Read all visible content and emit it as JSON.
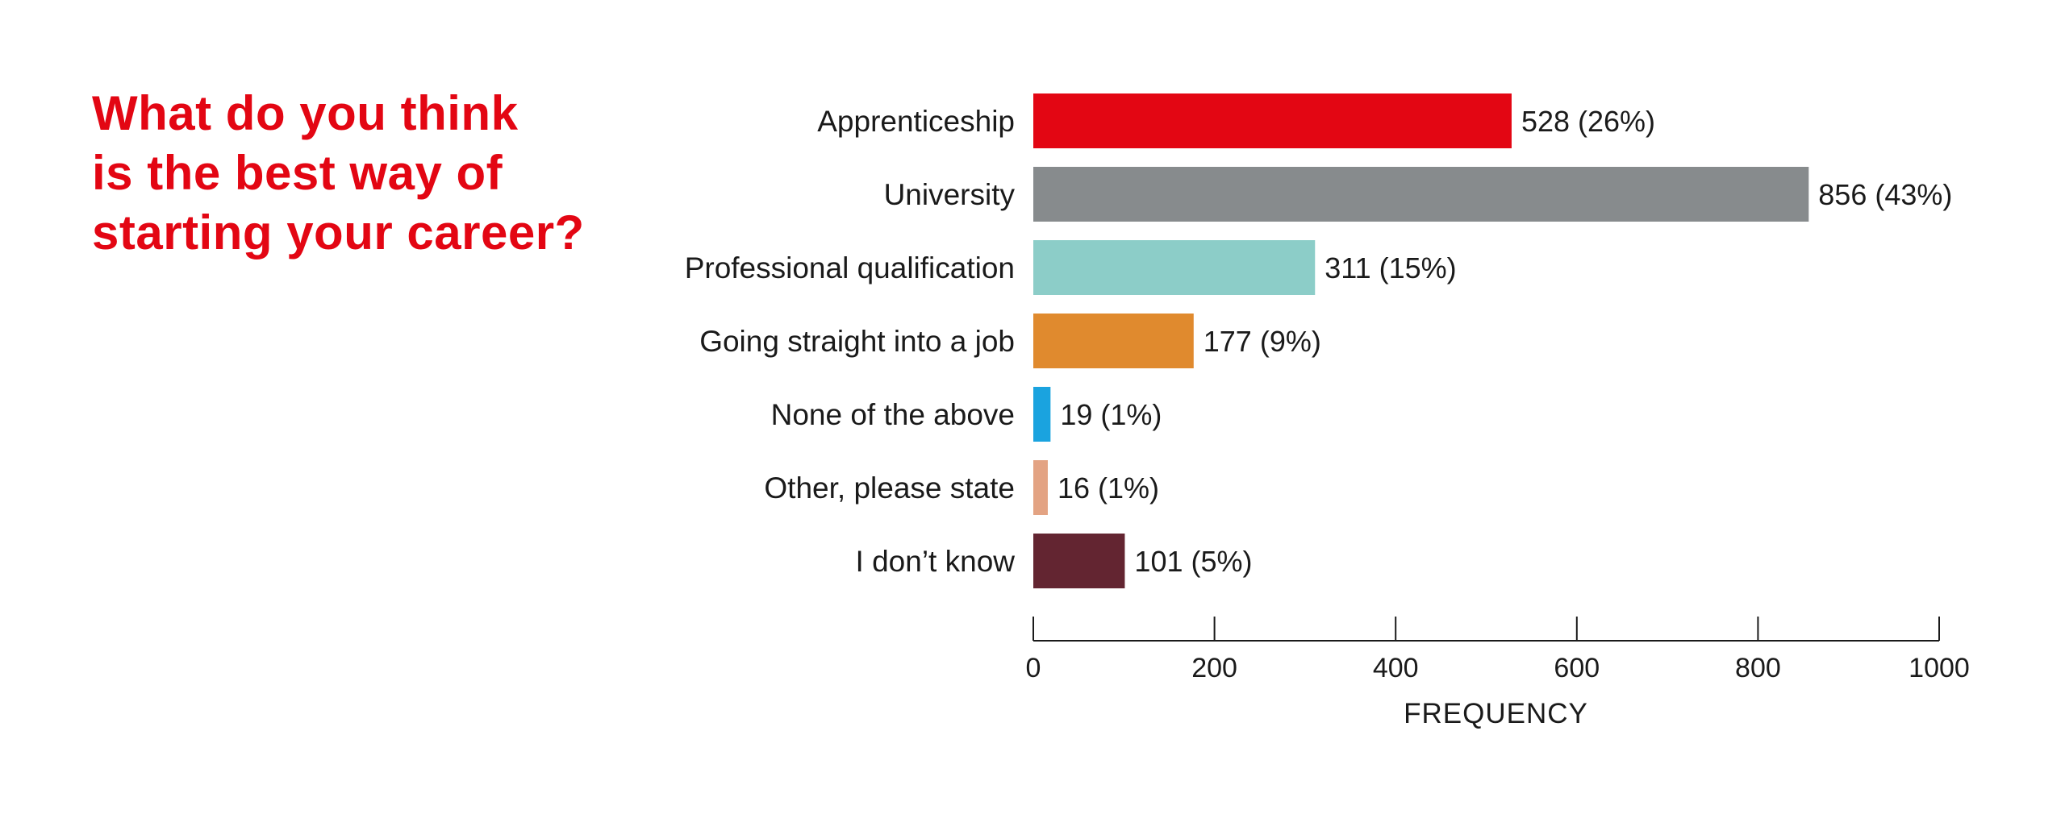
{
  "title_lines": [
    "What do you think",
    "is the best way of",
    "starting your career?"
  ],
  "colors": {
    "title": "#e30613",
    "axis": "#1a1a1a"
  },
  "chart_data": {
    "type": "bar",
    "orientation": "horizontal",
    "categories": [
      "Apprenticeship",
      "University",
      "Professional qualification",
      "Going straight into a job",
      "None of the above",
      "Other, please state",
      "I don’t know"
    ],
    "values": [
      528,
      856,
      311,
      177,
      19,
      16,
      101
    ],
    "value_labels": [
      "528 (26%)",
      "856 (43%)",
      "311 (15%)",
      "177 (9%)",
      "19 (1%)",
      "16 (1%)",
      "101 (5%)"
    ],
    "bar_colors": [
      "#e30613",
      "#878b8d",
      "#8ccdc8",
      "#e08a2e",
      "#1aa3df",
      "#e3a383",
      "#632531"
    ],
    "xlabel": "FREQUENCY",
    "xlim": [
      0,
      1000
    ],
    "xticks": [
      0,
      200,
      400,
      600,
      800,
      1000
    ],
    "xtick_labels": [
      "0",
      "200",
      "400",
      "600",
      "800",
      "1000"
    ],
    "grid": false,
    "legend": false
  }
}
